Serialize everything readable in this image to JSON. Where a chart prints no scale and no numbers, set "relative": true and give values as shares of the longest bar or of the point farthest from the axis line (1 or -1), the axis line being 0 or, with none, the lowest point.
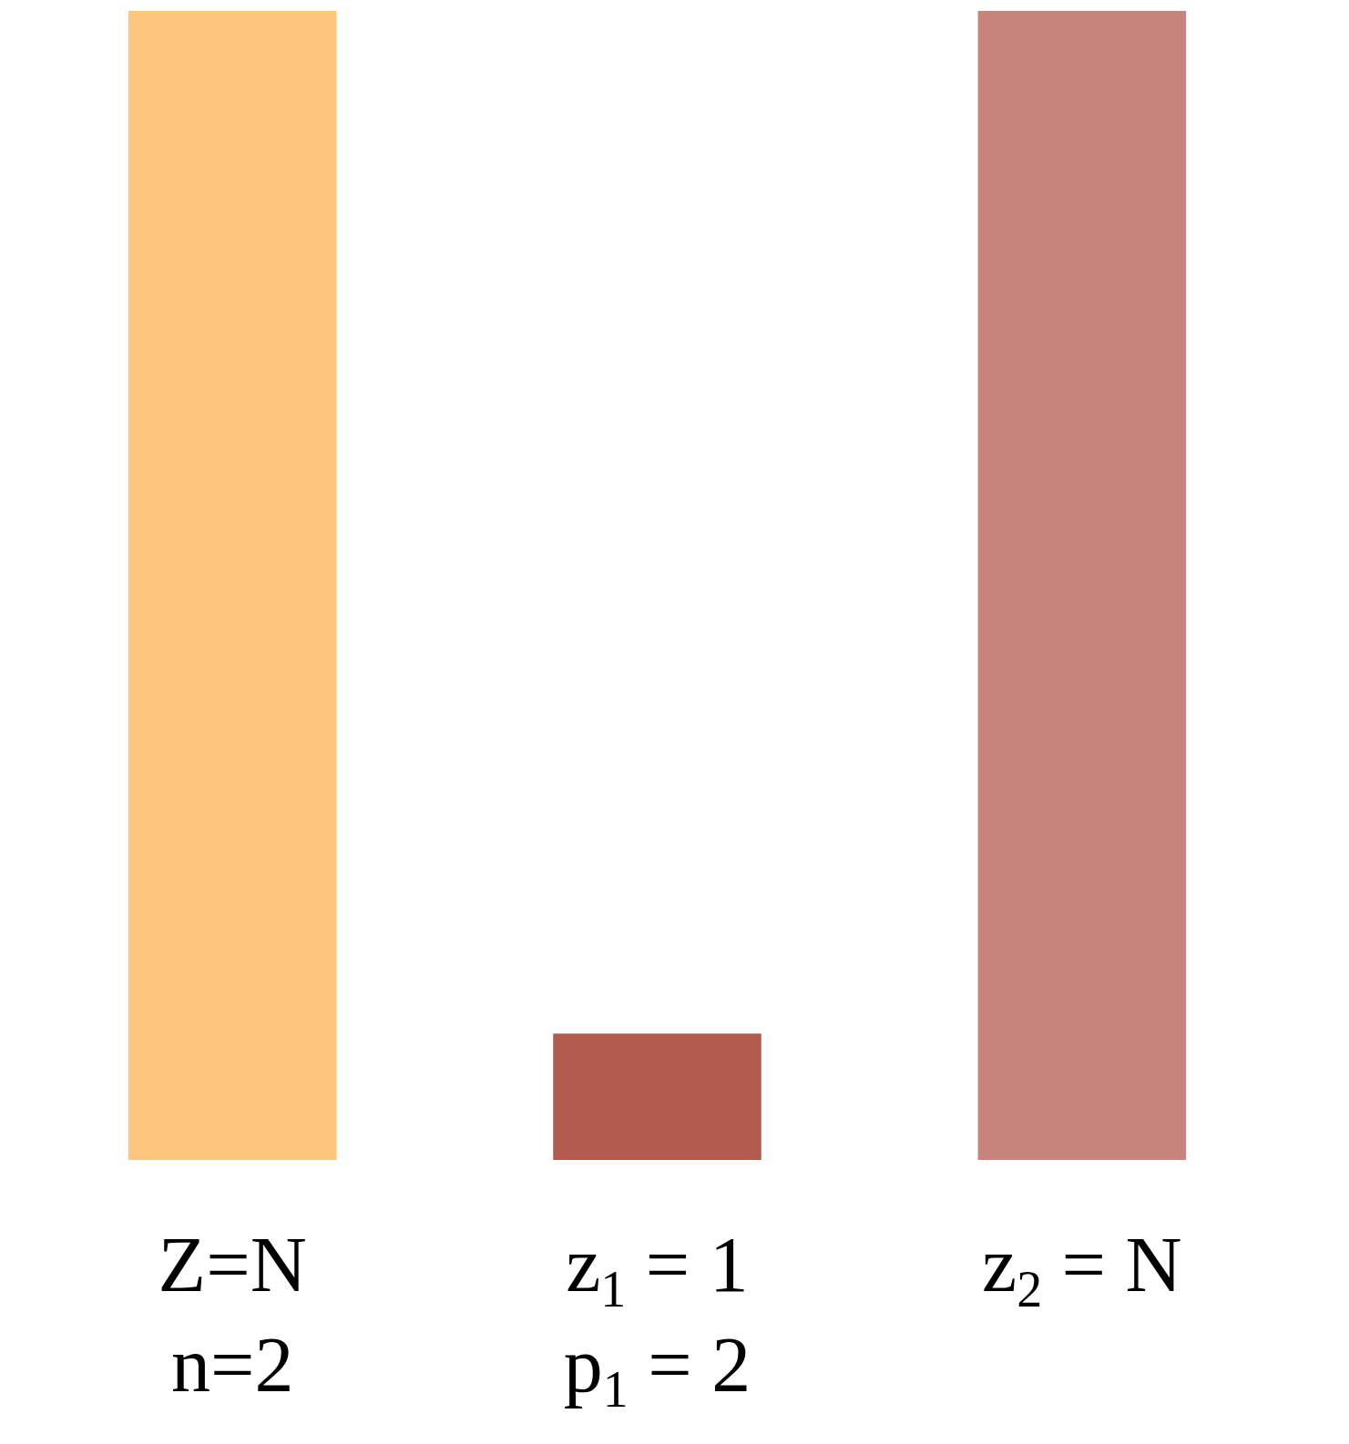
{
  "chart_data": {
    "type": "bar",
    "relative": true,
    "categories": [
      "Z=N\nn=2",
      "z$_{1}$ = 1\np$_{1}$ = 2",
      "z$_{2}$ = N"
    ],
    "values": [
      1,
      0.11,
      1
    ],
    "colors": [
      "#fec57f",
      "#b55a4f",
      "#c8837c"
    ]
  }
}
